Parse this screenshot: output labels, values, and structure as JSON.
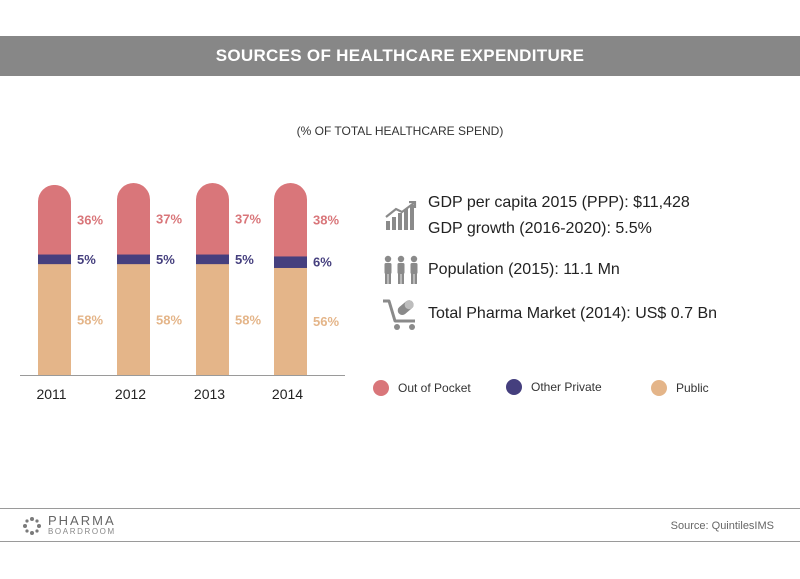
{
  "header": {
    "title": "SOURCES OF HEALTHCARE EXPENDITURE"
  },
  "subtitle": "(% OF TOTAL HEALTHCARE SPEND)",
  "colors": {
    "out_of_pocket": "#d9767a",
    "other_private": "#453f7e",
    "public": "#e4b589",
    "title_bar": "#878787"
  },
  "chart_data": {
    "type": "bar",
    "stacked": true,
    "categories": [
      "2011",
      "2012",
      "2013",
      "2014"
    ],
    "series": [
      {
        "name": "Public",
        "values": [
          58,
          58,
          58,
          56
        ],
        "labels": [
          "58%",
          "58%",
          "58%",
          "56%"
        ]
      },
      {
        "name": "Other Private",
        "values": [
          5,
          5,
          5,
          6
        ],
        "labels": [
          "5%",
          "5%",
          "5%",
          "6%"
        ]
      },
      {
        "name": "Out of Pocket",
        "values": [
          36,
          37,
          37,
          38
        ],
        "labels": [
          "36%",
          "37%",
          "37%",
          "38%"
        ]
      }
    ],
    "ylim": [
      0,
      100
    ],
    "grid": false,
    "legend": "bottom-right"
  },
  "stats": [
    {
      "icon": "growth-chart-icon",
      "lines": [
        "GDP per capita 2015 (PPP): $11,428",
        "GDP growth (2016-2020): 5.5%"
      ]
    },
    {
      "icon": "people-icon",
      "lines": [
        "Population (2015): 11.1 Mn"
      ]
    },
    {
      "icon": "pharma-cart-icon",
      "lines": [
        "Total Pharma Market (2014): US$ 0.7 Bn"
      ]
    }
  ],
  "legend": {
    "out_of_pocket": "Out of Pocket",
    "other_private": "Other Private",
    "public": "Public"
  },
  "footer": {
    "logo_top": "PHARMA",
    "logo_bottom": "BOARDROOM",
    "source": "Source:  QuintilesIMS"
  }
}
